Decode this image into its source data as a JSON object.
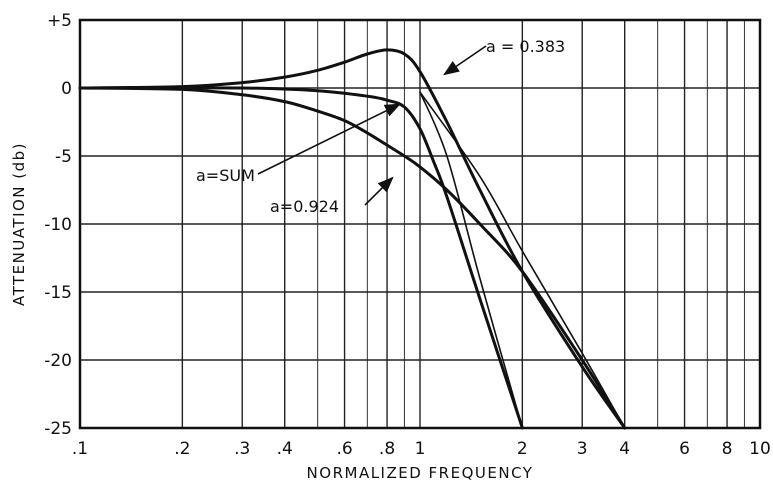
{
  "chart_data": {
    "type": "line",
    "title": "",
    "xlabel": "NORMALIZED FREQUENCY",
    "ylabel": "ATTENUATION (db)",
    "x_scale": "log",
    "xlim": [
      0.1,
      10
    ],
    "ylim": [
      -25,
      5
    ],
    "grid": true,
    "x_tick_values": [
      0.1,
      0.2,
      0.3,
      0.4,
      0.6,
      0.8,
      1,
      2,
      3,
      4,
      6,
      8,
      10
    ],
    "x_tick_labels": [
      ".1",
      ".2",
      ".3",
      ".4",
      ".6",
      ".8",
      "1",
      "2",
      "3",
      "4",
      "6",
      "8",
      "10"
    ],
    "x_minor_grid": [
      0.5,
      0.7,
      0.9,
      5,
      7,
      9
    ],
    "y_tick_values": [
      5,
      0,
      -5,
      -10,
      -15,
      -20,
      -25
    ],
    "y_tick_labels": [
      "+5",
      "0",
      "-5",
      "-10",
      "-15",
      "-20",
      "-25"
    ],
    "series": [
      {
        "name": "a=0.383",
        "label_text": "a = 0.383",
        "x": [
          0.1,
          0.2,
          0.3,
          0.4,
          0.5,
          0.6,
          0.7,
          0.8,
          0.9,
          1.0,
          1.2,
          1.5,
          2.0,
          3.0,
          4.0
        ],
        "y": [
          0,
          0.1,
          0.4,
          0.8,
          1.3,
          1.9,
          2.5,
          2.8,
          2.5,
          1.2,
          -2.5,
          -7.5,
          -13.5,
          -20.5,
          -25
        ]
      },
      {
        "name": "a=SUM",
        "label_text": "a=SUM",
        "x": [
          0.1,
          0.3,
          0.5,
          0.7,
          0.8,
          0.9,
          1.0,
          1.1,
          1.2,
          1.5,
          2.0
        ],
        "y": [
          0,
          0,
          -0.2,
          -0.6,
          -0.9,
          -1.4,
          -3.0,
          -5.5,
          -8.0,
          -15.5,
          -25
        ]
      },
      {
        "name": "a=0.924",
        "label_text": "a=0.924",
        "x": [
          0.1,
          0.2,
          0.3,
          0.4,
          0.5,
          0.6,
          0.7,
          0.8,
          0.9,
          1.0,
          1.2,
          1.5,
          2.0,
          3.0,
          4.0
        ],
        "y": [
          0,
          -0.1,
          -0.5,
          -1.0,
          -1.7,
          -2.4,
          -3.3,
          -4.2,
          -5.0,
          -5.8,
          -7.5,
          -10.0,
          -13.5,
          -20.0,
          -25
        ]
      },
      {
        "name": "",
        "x": [
          1.0,
          1.2,
          1.5,
          2.0
        ],
        "y": [
          -0.3,
          -5.0,
          -14.0,
          -25
        ]
      },
      {
        "name": "",
        "x": [
          1.0,
          1.5,
          2.0,
          3.0,
          4.0
        ],
        "y": [
          -0.3,
          -6.5,
          -12.0,
          -19.5,
          -25
        ]
      }
    ],
    "annotations": [
      {
        "text": "a = 0.383",
        "target_series": 0,
        "arrow_to": [
          1.18,
          1.0
        ]
      },
      {
        "text": "a=SUM",
        "target_series": 1,
        "arrow_to": [
          0.87,
          -1.2
        ]
      },
      {
        "text": "a=0.924",
        "target_series": 2,
        "arrow_to": [
          0.83,
          -6.6
        ]
      }
    ]
  }
}
